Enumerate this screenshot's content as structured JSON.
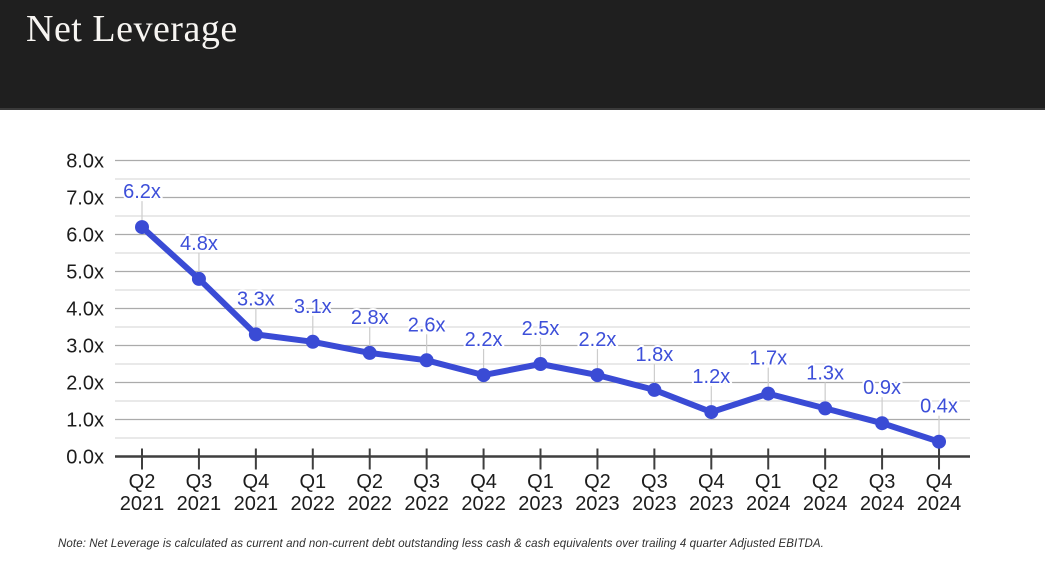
{
  "header": {
    "title": "Net Leverage"
  },
  "footnote": "Note: Net Leverage is calculated as current and non-current debt outstanding less cash & cash equivalents over trailing 4 quarter Adjusted EBITDA.",
  "colors": {
    "header_bg": "#1f1f1f",
    "title_text": "#f7f5f2",
    "line": "#3a4bd5",
    "point_label": "#3d4fd9",
    "grid_major": "#ababab",
    "grid_minor": "#dcdcdc",
    "axis": "#3f3f3f",
    "axis_text": "#1c1c1c",
    "leader_line": "#cccccc",
    "footnote_text": "#2e2e2e",
    "background": "#ffffff"
  },
  "chart_data": {
    "type": "line",
    "title": "Net Leverage",
    "categories": [
      "Q2 2021",
      "Q3 2021",
      "Q4 2021",
      "Q1 2022",
      "Q2 2022",
      "Q3 2022",
      "Q4 2022",
      "Q1 2023",
      "Q2 2023",
      "Q3 2023",
      "Q4 2023",
      "Q1 2024",
      "Q2 2024",
      "Q3 2024",
      "Q4 2024"
    ],
    "values": [
      6.2,
      4.8,
      3.3,
      3.1,
      2.8,
      2.6,
      2.2,
      2.5,
      2.2,
      1.8,
      1.2,
      1.7,
      1.3,
      0.9,
      0.4
    ],
    "point_labels": [
      "6.2x",
      "4.8x",
      "3.3x",
      "3.1x",
      "2.8x",
      "2.6x",
      "2.2x",
      "2.5x",
      "2.2x",
      "1.8x",
      "1.2x",
      "1.7x",
      "1.3x",
      "0.9x",
      "0.4x"
    ],
    "xlabel": "",
    "ylabel": "",
    "ylim": [
      0,
      8
    ],
    "y_major_step": 1.0,
    "y_minor_step": 0.5,
    "y_tick_labels": [
      "0.0x",
      "1.0x",
      "2.0x",
      "3.0x",
      "4.0x",
      "5.0x",
      "6.0x",
      "7.0x",
      "8.0x"
    ],
    "grid": true,
    "legend": false,
    "unit_suffix": "x"
  }
}
